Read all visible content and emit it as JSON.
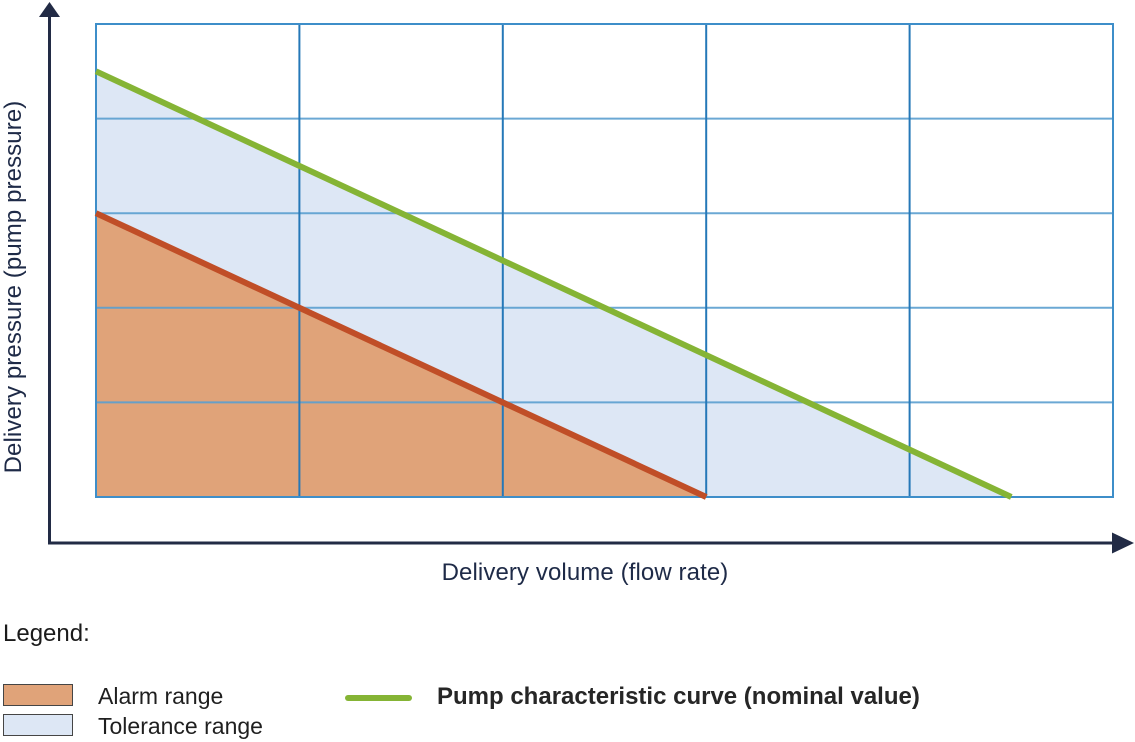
{
  "chart_data": {
    "type": "area",
    "title": "",
    "xlabel": "Delivery volume (flow rate)",
    "ylabel": "Delivery pressure (pump pressure)",
    "x_range": [
      0,
      5
    ],
    "y_range": [
      0,
      5
    ],
    "grid": {
      "visible": true,
      "x_step": 1,
      "y_step": 1,
      "tick_labels": "none"
    },
    "regions": [
      {
        "name": "Tolerance range",
        "fill": "#dde7f5",
        "polygon": [
          [
            0,
            4.5
          ],
          [
            4.5,
            0
          ],
          [
            3,
            0
          ],
          [
            0,
            3
          ]
        ]
      },
      {
        "name": "Alarm range",
        "fill": "#e0a379",
        "polygon": [
          [
            0,
            3
          ],
          [
            3,
            0
          ],
          [
            0,
            0
          ]
        ]
      }
    ],
    "series": [
      {
        "name": "Alarm range boundary",
        "color": "#c04e27",
        "width": 6,
        "points": [
          [
            0,
            3
          ],
          [
            3,
            0
          ]
        ]
      },
      {
        "name": "Pump characteristic curve (nominal value)",
        "color": "#85b435",
        "width": 6,
        "points": [
          [
            0,
            4.5
          ],
          [
            4.5,
            0
          ]
        ]
      }
    ],
    "legend_position": "bottom"
  },
  "legend": {
    "title": "Legend:",
    "items": [
      {
        "label": "Alarm range",
        "swatch": "alarm-fill"
      },
      {
        "label": "Tolerance range",
        "swatch": "tolerance-fill"
      },
      {
        "label": "Pump characteristic curve (nominal value)",
        "swatch": "green-line"
      }
    ]
  },
  "colors": {
    "axis": "#222b45",
    "grid_vertical": "#2578b8",
    "grid_horizontal": "#5b9fd0",
    "plot_border": "#3e8ec9",
    "alarm_fill": "#e0a379",
    "alarm_line": "#c04e27",
    "tolerance_fill": "#dde7f5",
    "nominal_line": "#85b435",
    "axis_label_text": "#1e2a47",
    "legend_text": "#1f1f1f"
  }
}
